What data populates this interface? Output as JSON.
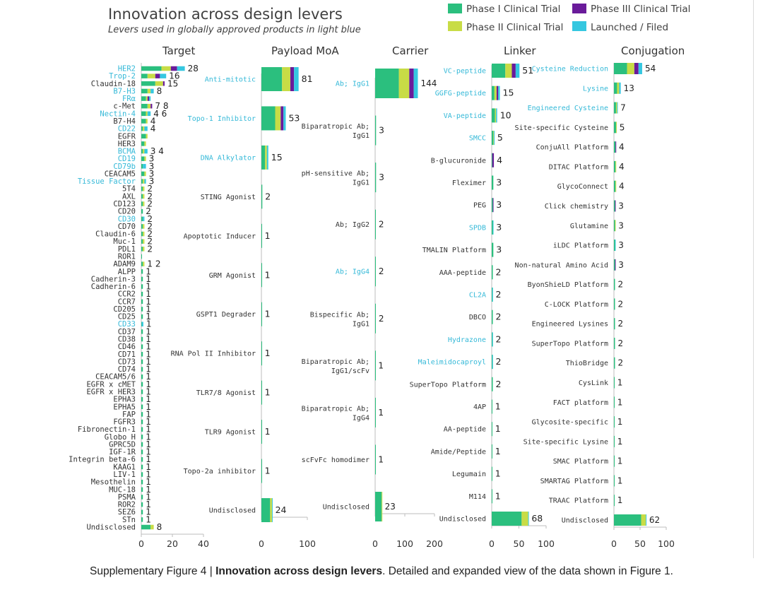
{
  "header": {
    "title": "Innovation across design levers",
    "subtitle": "Levers used in globally approved products in light blue"
  },
  "legend": [
    {
      "label": "Phase I Clinical Trial",
      "color": "#2bbf7e"
    },
    {
      "label": "Phase III Clinical Trial",
      "color": "#6a1b9a"
    },
    {
      "label": "Phase II Clinical Trial",
      "color": "#c8dc46"
    },
    {
      "label": "Launched / Filed",
      "color": "#35c7e0"
    }
  ],
  "caption": {
    "prefix": "Supplementary Figure 4 | ",
    "bold": "Innovation across design levers",
    "suffix": ". Detailed and expanded view of the data shown in Figure 1."
  },
  "colors": {
    "phase1": "#2bbf7e",
    "phase2": "#c8dc46",
    "phase3": "#6a1b9a",
    "launched": "#35c7e0",
    "label_default": "#333333",
    "label_approved": "#35b9d8"
  },
  "chart_data": [
    {
      "type": "bar",
      "orientation": "horizontal",
      "stacked": true,
      "title": "Target",
      "xlim": [
        0,
        40
      ],
      "xticks": [
        0,
        20,
        40
      ],
      "categories": [
        "HER2",
        "Trop-2",
        "Claudin-18",
        "B7-H3",
        "FRα",
        "c-Met",
        "Nectin-4",
        "B7-H4",
        "CD22",
        "EGFR",
        "HER3",
        "BCMA",
        "CD19",
        "CD79b",
        "CEACAM5",
        "Tissue Factor",
        "5T4",
        "AXL",
        "CD123",
        "CD20",
        "CD30",
        "CD70",
        "Claudin-6",
        "Muc-1",
        "PDL1",
        "ROR1",
        "ADAM9",
        "ALPP",
        "Cadherin-3",
        "Cadherin-6",
        "CCR2",
        "CCR7",
        "CD205",
        "CD25",
        "CD33",
        "CD37",
        "CD38",
        "CD46",
        "CD71",
        "CD73",
        "CD74",
        "CEACAM5/6",
        "EGFR x cMET",
        "EGFR x HER3",
        "EPHA3",
        "EPHA5",
        "FAP",
        "FGFR3",
        "Fibronectin-1",
        "Globo H",
        "GPRC5D",
        "IGF-1R",
        "Integrin beta-6",
        "KAAG1",
        "LIV-1",
        "Mesothelin",
        "MUC-18",
        "PSMA",
        "ROR2",
        "SEZ6",
        "STn",
        "Undisclosed"
      ],
      "approved": [
        "HER2",
        "Trop-2",
        "B7-H3",
        "FRα",
        "Nectin-4",
        "CD22",
        "BCMA",
        "CD19",
        "CD79b",
        "Tissue Factor",
        "CD30",
        "CD33"
      ],
      "value_labels": [
        "28",
        "16",
        "15",
        "8",
        "",
        "7 8",
        "4 6",
        "4",
        "4",
        "",
        "",
        "3 4",
        "3",
        "3",
        "3",
        "3",
        "2",
        "2",
        "2",
        "2",
        "2",
        "2",
        "2",
        "2",
        "2",
        "",
        "1 2",
        "1",
        "1",
        "1",
        "1",
        "1",
        "1",
        "1",
        "1",
        "1",
        "1",
        "1",
        "1",
        "1",
        "1",
        "1",
        "1",
        "1",
        "1",
        "1",
        "1",
        "1",
        "1",
        "1",
        "1",
        "1",
        "1",
        "1",
        "1",
        "1",
        "1",
        "1",
        "1",
        "1",
        "1",
        "8"
      ],
      "series": [
        {
          "name": "Phase I Clinical Trial",
          "values": [
            13,
            4,
            9,
            4,
            3,
            4,
            3,
            3,
            1,
            3,
            2,
            1,
            2,
            1,
            2,
            1,
            1,
            1,
            1,
            1,
            1,
            1,
            1,
            1,
            1,
            0.3,
            1,
            1,
            1,
            1,
            1,
            1,
            1,
            1,
            0.3,
            1,
            1,
            1,
            1,
            1,
            1,
            1,
            1,
            1,
            1,
            1,
            1,
            1,
            1,
            1,
            1,
            1,
            1,
            1,
            1,
            1,
            1,
            1,
            1,
            1,
            1,
            6
          ]
        },
        {
          "name": "Phase II Clinical Trial",
          "values": [
            6,
            5,
            5,
            2,
            1,
            2,
            1,
            1,
            1,
            1,
            1,
            1,
            1,
            0,
            1,
            1,
            1,
            1,
            1,
            0,
            0,
            1,
            1,
            1,
            1,
            0,
            1,
            0,
            0,
            0,
            0,
            0,
            0,
            0,
            0,
            0,
            0,
            0,
            0,
            0,
            0,
            0,
            0,
            0,
            0,
            0,
            0,
            0,
            0,
            0,
            0,
            0,
            0,
            0,
            0,
            0,
            0,
            0,
            0,
            0,
            0,
            2
          ]
        },
        {
          "name": "Phase III Clinical Trial",
          "values": [
            4,
            3,
            1,
            0,
            1,
            1,
            0,
            0,
            0,
            0,
            0,
            0,
            0,
            0,
            0,
            0,
            0,
            0,
            0,
            0,
            0,
            0,
            0,
            0,
            0,
            0,
            0,
            0,
            0,
            0,
            0,
            0,
            0,
            0,
            0,
            0,
            0,
            0,
            0,
            0,
            0,
            0,
            0,
            0,
            0,
            0,
            0,
            0,
            0,
            0,
            0,
            0,
            0,
            0,
            0,
            0,
            0,
            0,
            0,
            0,
            0,
            0
          ]
        },
        {
          "name": "Launched / Filed",
          "values": [
            5,
            4,
            0,
            2,
            1,
            0,
            2,
            0,
            2,
            0,
            0,
            2,
            0,
            2,
            0,
            1,
            0,
            0,
            0,
            0,
            1,
            0,
            0,
            0,
            0,
            0,
            0,
            0,
            0,
            0,
            0,
            0,
            0,
            0,
            1,
            0,
            0,
            0,
            0,
            0,
            0,
            0,
            0,
            0,
            0,
            0,
            0,
            0,
            0,
            0,
            0,
            0,
            0,
            0,
            0,
            0,
            0,
            0,
            0,
            0,
            0,
            0
          ]
        }
      ]
    },
    {
      "type": "bar",
      "orientation": "horizontal",
      "stacked": true,
      "title": "Payload MoA",
      "xlim": [
        0,
        100
      ],
      "xticks": [
        0,
        100
      ],
      "categories": [
        "Anti-mitotic",
        "Topo-1 Inhibitor",
        "DNA Alkylator",
        "STING Agonist",
        "Apoptotic Inducer",
        "GRM Agonist",
        "GSPT1 Degrader",
        "RNA Pol II Inhibitor",
        "TLR7/8 Agonist",
        "TLR9 Agonist",
        "Topo-2a inhibitor",
        "Undisclosed"
      ],
      "approved": [
        "Anti-mitotic",
        "Topo-1 Inhibitor",
        "DNA Alkylator"
      ],
      "value_labels": [
        "81",
        "53",
        "15",
        "2",
        "1",
        "1",
        "1",
        "1",
        "1",
        "1",
        "1",
        "24"
      ],
      "series": [
        {
          "name": "Phase I Clinical Trial",
          "values": [
            45,
            30,
            8,
            2,
            1,
            1,
            1,
            1,
            1,
            1,
            1,
            19
          ]
        },
        {
          "name": "Phase II Clinical Trial",
          "values": [
            18,
            12,
            4,
            0,
            0,
            0,
            0,
            0,
            0,
            0,
            0,
            4
          ]
        },
        {
          "name": "Phase III Clinical Trial",
          "values": [
            8,
            6,
            0,
            0,
            0,
            0,
            0,
            0,
            0,
            0,
            0,
            0
          ]
        },
        {
          "name": "Launched / Filed",
          "values": [
            10,
            5,
            3,
            0,
            0,
            0,
            0,
            0,
            0,
            0,
            0,
            1
          ]
        }
      ]
    },
    {
      "type": "bar",
      "orientation": "horizontal",
      "stacked": true,
      "title": "Carrier",
      "xlim": [
        0,
        200
      ],
      "xticks": [
        0,
        100,
        200
      ],
      "categories": [
        "Ab; IgG1",
        "Biparatropic Ab; IgG1",
        "pH-sensitive Ab; IgG1",
        "Ab; IgG2",
        "Ab; IgG4",
        "Bispecific Ab; IgG1",
        "Biparatropic Ab; IgG1/scFv",
        "Biparatropic Ab; IgG4",
        "scFvFc homodimer",
        "Undisclosed"
      ],
      "approved": [
        "Ab; IgG1",
        "Ab; IgG4"
      ],
      "value_labels": [
        "144",
        "3",
        "3",
        "2",
        "2",
        "2",
        "1",
        "1",
        "1",
        "23"
      ],
      "series": [
        {
          "name": "Phase I Clinical Trial",
          "values": [
            80,
            3,
            3,
            2,
            2,
            2,
            1,
            1,
            1,
            22
          ]
        },
        {
          "name": "Phase II Clinical Trial",
          "values": [
            35,
            0,
            0,
            0,
            0,
            0,
            0,
            0,
            0,
            1
          ]
        },
        {
          "name": "Phase III Clinical Trial",
          "values": [
            15,
            0,
            0,
            0,
            0,
            0,
            0,
            0,
            0,
            0
          ]
        },
        {
          "name": "Launched / Filed",
          "values": [
            14,
            0,
            0,
            0,
            0,
            0,
            0,
            0,
            0,
            0
          ]
        }
      ]
    },
    {
      "type": "bar",
      "orientation": "horizontal",
      "stacked": true,
      "title": "Linker",
      "xlim": [
        0,
        100
      ],
      "xticks": [
        0,
        50,
        100
      ],
      "categories": [
        "VC-peptide",
        "GGFG-peptide",
        "VA-peptide",
        "SMCC",
        "B-glucuronide",
        "Fleximer",
        "PEG",
        "SPDB",
        "TMALIN Platform",
        "AAA-peptide",
        "CL2A",
        "DBCO",
        "Hydrazone",
        "Maleimidocaproyl",
        "SuperTopo Platform",
        "4AP",
        "AA-peptide",
        "Amide/Peptide",
        "Legumain",
        "M114",
        "Undisclosed"
      ],
      "approved": [
        "VC-peptide",
        "GGFG-peptide",
        "VA-peptide",
        "SMCC",
        "SPDB",
        "CL2A",
        "Hydrazone",
        "Maleimidocaproyl"
      ],
      "value_labels": [
        "51",
        "15",
        "10",
        "5",
        "4",
        "3",
        "3",
        "3",
        "3",
        "2",
        "2",
        "2",
        "2",
        "2",
        "2",
        "1",
        "1",
        "1",
        "1",
        "1",
        "68"
      ],
      "series": [
        {
          "name": "Phase I Clinical Trial",
          "values": [
            25,
            5,
            6,
            3,
            1,
            3,
            2,
            2,
            3,
            2,
            1,
            2,
            1,
            1,
            2,
            1,
            1,
            1,
            1,
            1,
            55
          ]
        },
        {
          "name": "Phase II Clinical Trial",
          "values": [
            12,
            4,
            2,
            1,
            0,
            0,
            0,
            0,
            0,
            0,
            0,
            0,
            0,
            0,
            0,
            0,
            0,
            0,
            0,
            0,
            12
          ]
        },
        {
          "name": "Phase III Clinical Trial",
          "values": [
            7,
            3,
            0,
            0,
            3,
            0,
            1,
            0,
            0,
            0,
            0,
            0,
            0,
            0,
            0,
            0,
            0,
            0,
            0,
            0,
            0
          ]
        },
        {
          "name": "Launched / Filed",
          "values": [
            7,
            3,
            2,
            1,
            0,
            0,
            0,
            1,
            0,
            0,
            1,
            0,
            1,
            1,
            0,
            0,
            0,
            0,
            0,
            0,
            1
          ]
        }
      ]
    },
    {
      "type": "bar",
      "orientation": "horizontal",
      "stacked": true,
      "title": "Conjugation",
      "xlim": [
        0,
        100
      ],
      "xticks": [
        0,
        50,
        100
      ],
      "categories": [
        "Cysteine Reduction",
        "Lysine",
        "Engineered Cysteine",
        "Site-specific Cysteine",
        "ConjuAll Platform",
        "DITAC Platform",
        "GlycoConnect",
        "Click chemistry",
        "Glutamine",
        "iLDC Platform",
        "Non-natural Amino Acid",
        "ByonShieLD Platform",
        "C-LOCK Platform",
        "Engineered Lysines",
        "SuperTopo Platform",
        "ThioBridge",
        "CysLink",
        "FACT platform",
        "Glycosite-specific",
        "Site-specific Lysine",
        "SMAC Platform",
        "SMARTAG Platform",
        "TRAAC Platform",
        "Undisclosed"
      ],
      "approved": [
        "Cysteine Reduction",
        "Lysine",
        "Engineered Cysteine"
      ],
      "value_labels": [
        "54",
        "13",
        "7",
        "5",
        "4",
        "4",
        "4",
        "3",
        "3",
        "3",
        "3",
        "2",
        "2",
        "2",
        "2",
        "2",
        "1",
        "1",
        "1",
        "1",
        "1",
        "1",
        "1",
        "62"
      ],
      "series": [
        {
          "name": "Phase I Clinical Trial",
          "values": [
            25,
            6,
            4,
            4,
            3,
            3,
            3,
            2,
            2,
            2,
            2,
            2,
            2,
            2,
            2,
            2,
            1,
            1,
            1,
            1,
            1,
            1,
            1,
            52
          ]
        },
        {
          "name": "Phase II Clinical Trial",
          "values": [
            14,
            4,
            2,
            1,
            0,
            1,
            1,
            0,
            1,
            0,
            0,
            0,
            0,
            0,
            0,
            0,
            0,
            0,
            0,
            0,
            0,
            0,
            0,
            9
          ]
        },
        {
          "name": "Phase III Clinical Trial",
          "values": [
            8,
            0,
            0,
            0,
            1,
            0,
            0,
            1,
            0,
            0,
            1,
            0,
            0,
            0,
            0,
            0,
            0,
            0,
            0,
            0,
            0,
            0,
            0,
            0
          ]
        },
        {
          "name": "Launched / Filed",
          "values": [
            7,
            3,
            1,
            0,
            0,
            0,
            0,
            0,
            0,
            1,
            0,
            0,
            0,
            0,
            0,
            0,
            0,
            0,
            0,
            0,
            0,
            0,
            0,
            1
          ]
        }
      ]
    }
  ]
}
